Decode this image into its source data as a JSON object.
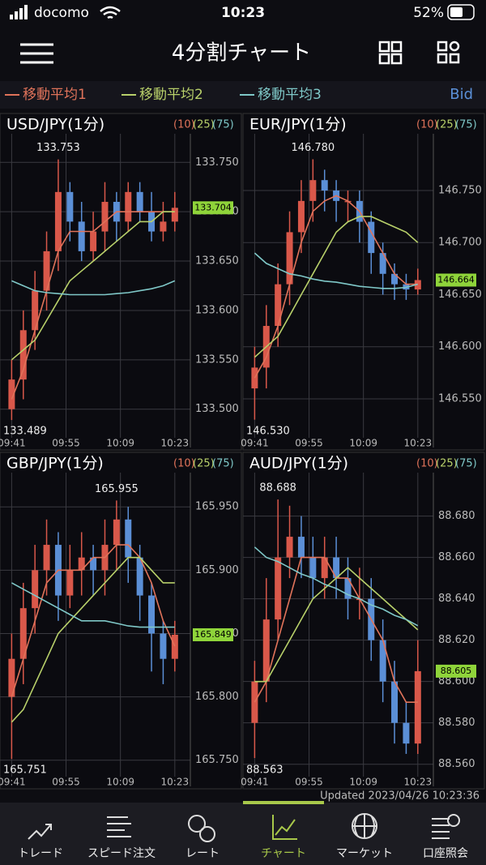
{
  "status_bar": {
    "carrier": "docomo",
    "time": "10:23",
    "battery": "52%"
  },
  "header": {
    "title": "4分割チャート"
  },
  "ma_legend": [
    {
      "name": "移動平均1",
      "color": "#e0735a"
    },
    {
      "name": "移動平均2",
      "color": "#b8d06a"
    },
    {
      "name": "移動平均3",
      "color": "#7fc8c8"
    }
  ],
  "price_type": "Bid",
  "chart_data": [
    {
      "type": "candlestick",
      "title": "USD/JPY(1分)",
      "x": [
        0,
        3,
        6,
        9,
        12,
        15,
        18,
        21,
        24,
        27,
        30,
        33,
        36,
        39,
        42
      ],
      "open": [
        133.5,
        133.53,
        133.58,
        133.62,
        133.66,
        133.72,
        133.69,
        133.66,
        133.68,
        133.71,
        133.69,
        133.72,
        133.7,
        133.68,
        133.69
      ],
      "high": [
        133.55,
        133.6,
        133.64,
        133.68,
        133.753,
        133.73,
        133.71,
        133.7,
        133.73,
        133.72,
        133.73,
        133.73,
        133.72,
        133.71,
        133.72
      ],
      "low": [
        133.489,
        133.51,
        133.56,
        133.6,
        133.64,
        133.67,
        133.65,
        133.65,
        133.66,
        133.67,
        133.68,
        133.69,
        133.67,
        133.67,
        133.68
      ],
      "close": [
        133.53,
        133.58,
        133.62,
        133.66,
        133.72,
        133.69,
        133.66,
        133.68,
        133.71,
        133.69,
        133.72,
        133.7,
        133.68,
        133.69,
        133.704
      ],
      "up_color": "#d9584a",
      "down_color": "#5b8fd6",
      "series": [
        {
          "name": "(10)",
          "color": "#e0735a",
          "values": [
            133.51,
            133.54,
            133.58,
            133.62,
            133.66,
            133.68,
            133.68,
            133.68,
            133.69,
            133.7,
            133.7,
            133.7,
            133.7,
            133.7,
            133.7
          ]
        },
        {
          "name": "(25)",
          "color": "#b8d06a",
          "values": [
            133.55,
            133.56,
            133.57,
            133.59,
            133.61,
            133.63,
            133.64,
            133.65,
            133.66,
            133.67,
            133.68,
            133.69,
            133.69,
            133.7,
            133.7
          ]
        },
        {
          "name": "(75)",
          "color": "#7fc8c8",
          "values": [
            133.63,
            133.625,
            133.62,
            133.618,
            133.617,
            133.616,
            133.616,
            133.616,
            133.616,
            133.617,
            133.618,
            133.62,
            133.622,
            133.625,
            133.63
          ]
        }
      ],
      "high_label": {
        "value": 133.753,
        "label": "133.753"
      },
      "low_label": {
        "value": 133.489,
        "label": "133.489"
      },
      "current": {
        "value": 133.704,
        "label": "133.704"
      },
      "current_color": "#8fd43a",
      "xlim": [
        -3,
        46
      ],
      "xticks": [
        {
          "value": 0,
          "label": "09:41"
        },
        {
          "value": 14,
          "label": "09:55"
        },
        {
          "value": 28,
          "label": "10:09"
        },
        {
          "value": 42,
          "label": "10:23"
        }
      ],
      "ylim": [
        133.471,
        133.779
      ],
      "yticks": [
        {
          "value": 133.5,
          "label": "133.500"
        },
        {
          "value": 133.55,
          "label": "133.550"
        },
        {
          "value": 133.6,
          "label": "133.600"
        },
        {
          "value": 133.65,
          "label": "133.650"
        },
        {
          "value": 133.7,
          "label": "133.700"
        },
        {
          "value": 133.75,
          "label": "133.750"
        }
      ],
      "grid": true
    },
    {
      "type": "candlestick",
      "title": "EUR/JPY(1分)",
      "x": [
        0,
        3,
        6,
        9,
        12,
        15,
        18,
        21,
        24,
        27,
        30,
        33,
        36,
        39,
        42
      ],
      "open": [
        146.56,
        146.58,
        146.62,
        146.66,
        146.71,
        146.74,
        146.76,
        146.75,
        146.74,
        146.74,
        146.72,
        146.69,
        146.67,
        146.66,
        146.655
      ],
      "high": [
        146.6,
        146.64,
        146.68,
        146.73,
        146.76,
        146.78,
        146.77,
        146.76,
        146.75,
        146.75,
        146.73,
        146.7,
        146.68,
        146.67,
        146.675
      ],
      "low": [
        146.53,
        146.56,
        146.6,
        146.64,
        146.69,
        146.72,
        146.73,
        146.72,
        146.72,
        146.7,
        146.67,
        146.65,
        146.645,
        146.645,
        146.65
      ],
      "close": [
        146.58,
        146.62,
        146.66,
        146.71,
        146.74,
        146.76,
        146.75,
        146.74,
        146.74,
        146.72,
        146.69,
        146.67,
        146.66,
        146.655,
        146.664
      ],
      "up_color": "#d9584a",
      "down_color": "#5b8fd6",
      "series": [
        {
          "name": "(10)",
          "color": "#e0735a",
          "values": [
            146.57,
            146.59,
            146.62,
            146.66,
            146.7,
            146.73,
            146.74,
            146.745,
            146.74,
            146.73,
            146.71,
            146.69,
            146.67,
            146.66,
            146.66
          ]
        },
        {
          "name": "(25)",
          "color": "#b8d06a",
          "values": [
            146.59,
            146.6,
            146.61,
            146.63,
            146.65,
            146.67,
            146.69,
            146.71,
            146.72,
            146.725,
            146.725,
            146.72,
            146.715,
            146.71,
            146.7
          ]
        },
        {
          "name": "(75)",
          "color": "#7fc8c8",
          "values": [
            146.69,
            146.68,
            146.675,
            146.67,
            146.668,
            146.665,
            146.663,
            146.662,
            146.66,
            146.658,
            146.657,
            146.656,
            146.656,
            146.657,
            146.66
          ]
        }
      ],
      "high_label": {
        "value": 146.78,
        "label": "146.780"
      },
      "low_label": {
        "value": 146.53,
        "label": "146.530"
      },
      "current": {
        "value": 146.664,
        "label": "146.664"
      },
      "current_color": "#8fd43a",
      "xlim": [
        -3,
        46
      ],
      "xticks": [
        {
          "value": 0,
          "label": "09:41"
        },
        {
          "value": 14,
          "label": "09:55"
        },
        {
          "value": 28,
          "label": "10:09"
        },
        {
          "value": 42,
          "label": "10:23"
        }
      ],
      "ylim": [
        146.5126,
        146.8045
      ],
      "yticks": [
        {
          "value": 146.55,
          "label": "146.550"
        },
        {
          "value": 146.6,
          "label": "146.600"
        },
        {
          "value": 146.65,
          "label": "146.650"
        },
        {
          "value": 146.7,
          "label": "146.700"
        },
        {
          "value": 146.75,
          "label": "146.750"
        }
      ],
      "grid": true
    },
    {
      "type": "candlestick",
      "title": "GBP/JPY(1分)",
      "x": [
        0,
        3,
        6,
        9,
        12,
        15,
        18,
        21,
        24,
        27,
        30,
        33,
        36,
        39,
        42
      ],
      "open": [
        165.8,
        165.83,
        165.87,
        165.9,
        165.92,
        165.88,
        165.9,
        165.91,
        165.9,
        165.92,
        165.94,
        165.91,
        165.88,
        165.85,
        165.83
      ],
      "high": [
        165.85,
        165.89,
        165.92,
        165.94,
        165.93,
        165.92,
        165.93,
        165.92,
        165.94,
        165.955,
        165.95,
        165.92,
        165.89,
        165.86,
        165.86
      ],
      "low": [
        165.751,
        165.81,
        165.85,
        165.88,
        165.86,
        165.87,
        165.88,
        165.88,
        165.88,
        165.9,
        165.89,
        165.86,
        165.82,
        165.81,
        165.82
      ],
      "close": [
        165.83,
        165.87,
        165.9,
        165.92,
        165.88,
        165.9,
        165.91,
        165.9,
        165.92,
        165.94,
        165.91,
        165.88,
        165.85,
        165.83,
        165.849
      ],
      "up_color": "#d9584a",
      "down_color": "#5b8fd6",
      "series": [
        {
          "name": "(10)",
          "color": "#e0735a",
          "values": [
            165.8,
            165.83,
            165.86,
            165.89,
            165.9,
            165.9,
            165.9,
            165.91,
            165.91,
            165.92,
            165.92,
            165.91,
            165.89,
            165.86,
            165.84
          ]
        },
        {
          "name": "(25)",
          "color": "#b8d06a",
          "values": [
            165.78,
            165.79,
            165.81,
            165.83,
            165.85,
            165.86,
            165.87,
            165.88,
            165.89,
            165.9,
            165.91,
            165.91,
            165.9,
            165.89,
            165.89
          ]
        },
        {
          "name": "(75)",
          "color": "#7fc8c8",
          "values": [
            165.89,
            165.885,
            165.88,
            165.875,
            165.87,
            165.865,
            165.86,
            165.86,
            165.86,
            165.858,
            165.856,
            165.855,
            165.855,
            165.855,
            165.855
          ]
        }
      ],
      "high_label": {
        "value": 165.955,
        "label": "165.955"
      },
      "low_label": {
        "value": 165.751,
        "label": "165.751"
      },
      "current": {
        "value": 165.849,
        "label": "165.849"
      },
      "current_color": "#8fd43a",
      "xlim": [
        -3,
        46
      ],
      "xticks": [
        {
          "value": 0,
          "label": "09:41"
        },
        {
          "value": 14,
          "label": "09:55"
        },
        {
          "value": 28,
          "label": "10:09"
        },
        {
          "value": 42,
          "label": "10:23"
        }
      ],
      "ylim": [
        165.737,
        165.977
      ],
      "yticks": [
        {
          "value": 165.75,
          "label": "165.750"
        },
        {
          "value": 165.8,
          "label": "165.800"
        },
        {
          "value": 165.85,
          "label": "165.850"
        },
        {
          "value": 165.9,
          "label": "165.900"
        },
        {
          "value": 165.95,
          "label": "165.950"
        }
      ],
      "grid": true
    },
    {
      "type": "candlestick",
      "title": "AUD/JPY(1分)",
      "x": [
        0,
        3,
        6,
        9,
        12,
        15,
        18,
        21,
        24,
        27,
        30,
        33,
        36,
        39,
        42
      ],
      "open": [
        88.58,
        88.6,
        88.63,
        88.66,
        88.67,
        88.66,
        88.65,
        88.66,
        88.65,
        88.64,
        88.64,
        88.62,
        88.6,
        88.58,
        88.57
      ],
      "high": [
        88.61,
        88.65,
        88.688,
        88.685,
        88.68,
        88.67,
        88.67,
        88.67,
        88.66,
        88.655,
        88.65,
        88.63,
        88.61,
        88.59,
        88.62
      ],
      "low": [
        88.563,
        88.59,
        88.62,
        88.65,
        88.65,
        88.64,
        88.64,
        88.64,
        88.63,
        88.63,
        88.61,
        88.59,
        88.57,
        88.565,
        88.565
      ],
      "close": [
        88.6,
        88.63,
        88.66,
        88.67,
        88.66,
        88.65,
        88.66,
        88.65,
        88.64,
        88.64,
        88.62,
        88.6,
        88.58,
        88.57,
        88.605
      ],
      "up_color": "#d9584a",
      "down_color": "#5b8fd6",
      "series": [
        {
          "name": "(10)",
          "color": "#e0735a",
          "values": [
            88.59,
            88.6,
            88.62,
            88.64,
            88.66,
            88.66,
            88.66,
            88.65,
            88.65,
            88.64,
            88.63,
            88.62,
            88.6,
            88.59,
            88.59
          ]
        },
        {
          "name": "(25)",
          "color": "#b8d06a",
          "values": [
            88.6,
            88.6,
            88.61,
            88.62,
            88.63,
            88.64,
            88.645,
            88.65,
            88.655,
            88.65,
            88.645,
            88.64,
            88.635,
            88.63,
            88.625
          ]
        },
        {
          "name": "(75)",
          "color": "#7fc8c8",
          "values": [
            88.665,
            88.66,
            88.658,
            88.655,
            88.652,
            88.65,
            88.647,
            88.645,
            88.642,
            88.64,
            88.637,
            88.635,
            88.632,
            88.63,
            88.627
          ]
        }
      ],
      "high_label": {
        "value": 88.688,
        "label": "88.688"
      },
      "low_label": {
        "value": 88.563,
        "label": "88.563"
      },
      "current": {
        "value": 88.605,
        "label": "88.605"
      },
      "current_color": "#8fd43a",
      "xlim": [
        -3,
        46
      ],
      "xticks": [
        {
          "value": 0,
          "label": "09:41"
        },
        {
          "value": 14,
          "label": "09:55"
        },
        {
          "value": 28,
          "label": "10:09"
        },
        {
          "value": 42,
          "label": "10:23"
        }
      ],
      "ylim": [
        88.554,
        88.701
      ],
      "yticks": [
        {
          "value": 88.56,
          "label": "88.560"
        },
        {
          "value": 88.58,
          "label": "88.580"
        },
        {
          "value": 88.6,
          "label": "88.600"
        },
        {
          "value": 88.62,
          "label": "88.620"
        },
        {
          "value": 88.64,
          "label": "88.640"
        },
        {
          "value": 88.66,
          "label": "88.660"
        },
        {
          "value": 88.68,
          "label": "88.680"
        }
      ],
      "grid": true
    }
  ],
  "updated": "Updated  2023/04/26  10:23:36",
  "tabs": [
    {
      "label": "トレード"
    },
    {
      "label": "スピード注文"
    },
    {
      "label": "レート"
    },
    {
      "label": "チャート"
    },
    {
      "label": "マーケット"
    },
    {
      "label": "口座照会"
    }
  ],
  "active_tab_color": "#a8c84a"
}
